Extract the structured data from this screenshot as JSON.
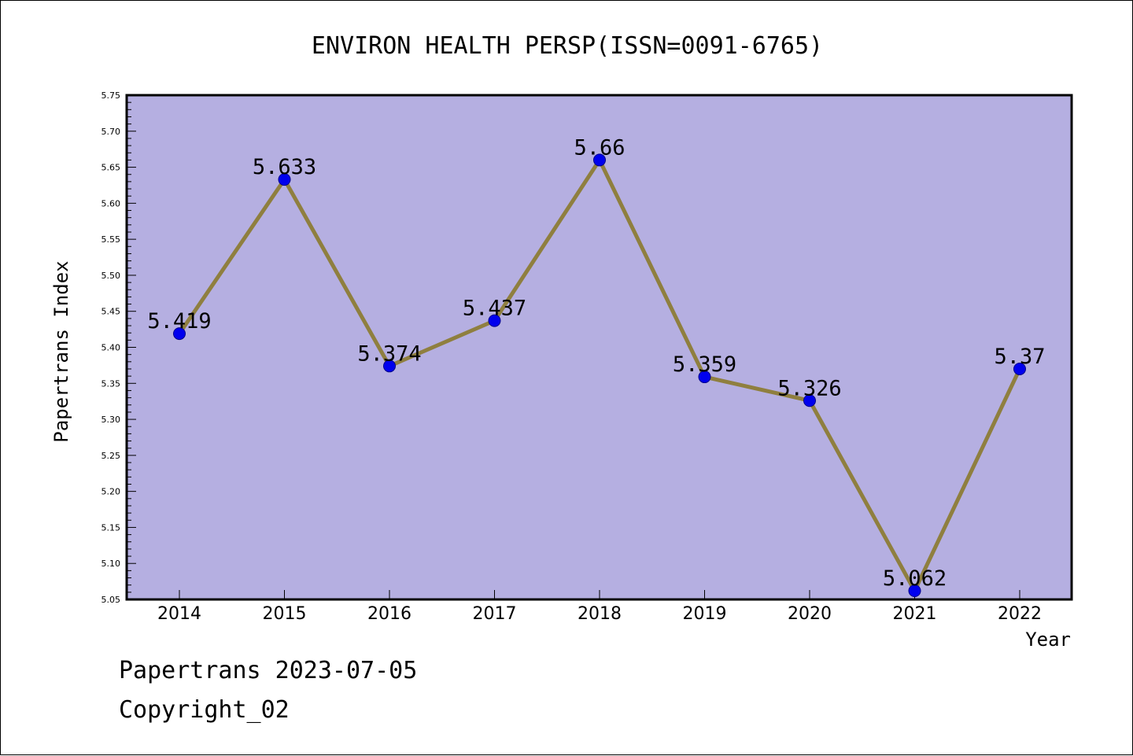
{
  "chart_data": {
    "type": "line",
    "title": "ENVIRON HEALTH PERSP(ISSN=0091-6765)",
    "xlabel": "Year",
    "ylabel": "Papertrans Index",
    "categories": [
      "2014",
      "2015",
      "2016",
      "2017",
      "2018",
      "2019",
      "2020",
      "2021",
      "2022"
    ],
    "series": [
      {
        "values": [
          5.419,
          5.633,
          5.374,
          5.437,
          5.66,
          5.359,
          5.326,
          5.062,
          5.37
        ],
        "labels": [
          "5.419",
          "5.633",
          "5.374",
          "5.437",
          "5.66",
          "5.359",
          "5.326",
          "5.062",
          "5.37"
        ]
      }
    ],
    "ylim": [
      5.05,
      5.75
    ],
    "ytick_step": 0.05,
    "grid": false,
    "legend": "none",
    "colors": {
      "plot_background": "#b5afe1",
      "line": "#8f7f3f",
      "marker": "#0000ee",
      "marker_edge": "#00008b",
      "axis": "#000000"
    }
  },
  "footer": {
    "line1": "Papertrans 2023-07-05",
    "line2": "Copyright_02"
  }
}
